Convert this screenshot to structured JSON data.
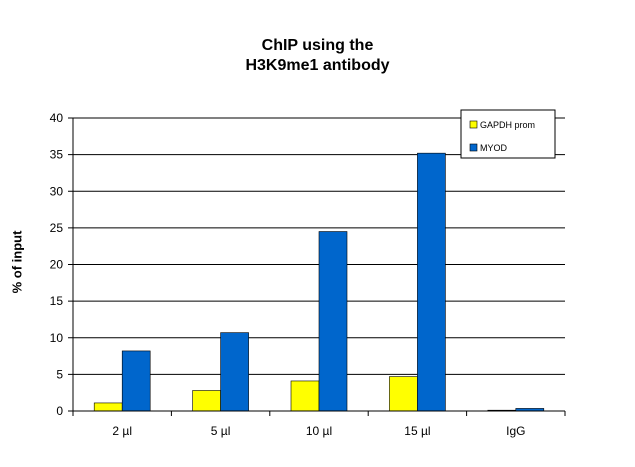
{
  "chart_data": {
    "type": "bar",
    "title_line1": "ChIP using the",
    "title_line2": "H3K9me1 antibody",
    "xlabel": "",
    "ylabel": "% of input",
    "categories": [
      "2 µl",
      "5 µl",
      "10 µl",
      "15 µl",
      "IgG"
    ],
    "series": [
      {
        "name": "GAPDH prom",
        "color": "#ffff00",
        "values": [
          1.1,
          2.8,
          4.1,
          4.7,
          0.1
        ]
      },
      {
        "name": "MYOD",
        "color": "#0066cc",
        "values": [
          8.2,
          10.7,
          24.5,
          35.2,
          0.35
        ]
      }
    ],
    "ylim": [
      0,
      40
    ],
    "yticks": [
      0,
      5,
      10,
      15,
      20,
      25,
      30,
      35,
      40
    ],
    "grid": true,
    "legend_position": "top-right"
  }
}
